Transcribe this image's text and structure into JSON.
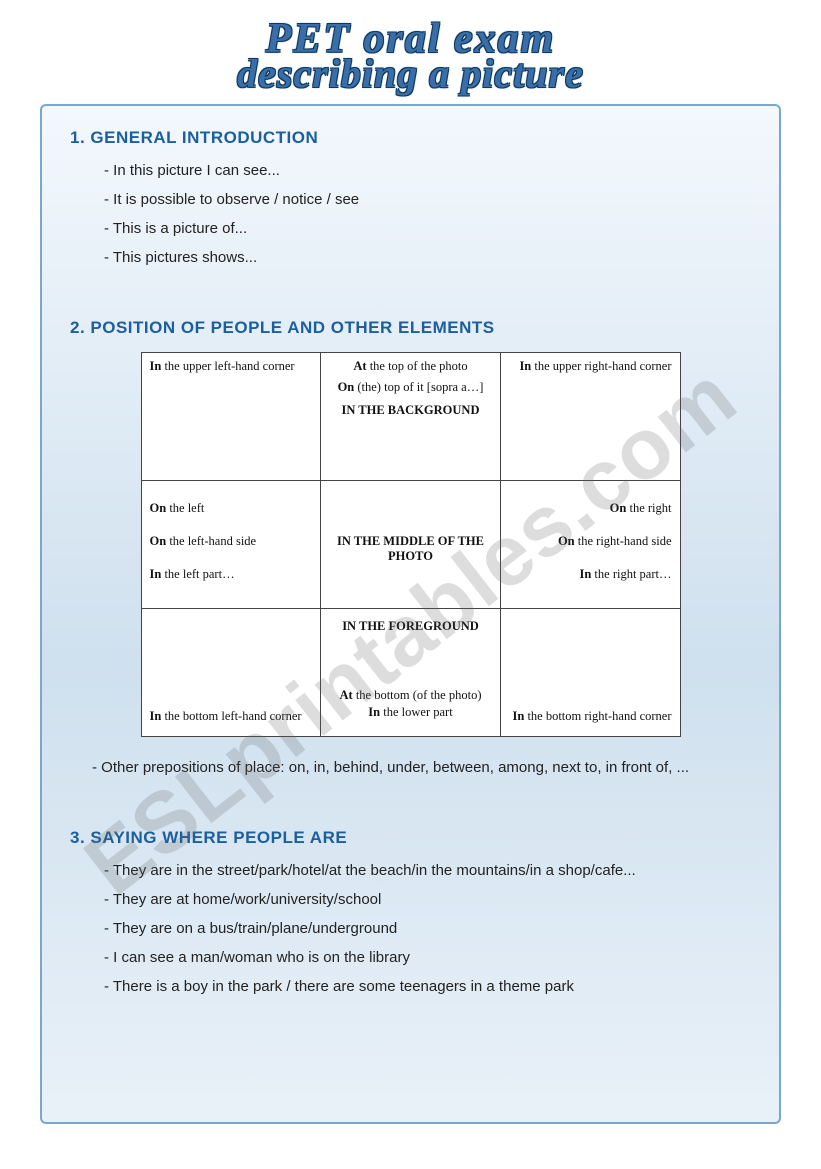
{
  "title": {
    "line1": "PET oral exam",
    "line2": "describing a picture"
  },
  "watermark": "ESLprintables.com",
  "section1": {
    "header": "1. GENERAL INTRODUCTION",
    "items": [
      "- In this picture I can see...",
      "- It is possible to observe / notice / see",
      "- This is a picture of...",
      "- This pictures shows..."
    ]
  },
  "section2": {
    "header": "2. POSITION OF PEOPLE AND OTHER ELEMENTS",
    "table": {
      "type": "table",
      "grid": "3x3",
      "cells": {
        "r1c1": [
          [
            "In",
            " the upper left-hand corner"
          ]
        ],
        "r1c2": [
          [
            "At",
            " the top of the photo"
          ],
          [
            "On",
            " (the) top of it [sopra a…]"
          ],
          [
            "",
            "IN THE BACKGROUND"
          ]
        ],
        "r1c3": [
          [
            "In",
            " the upper right-hand corner"
          ]
        ],
        "r2c1": [
          [
            "On",
            " the left"
          ],
          [
            "On",
            " the left-hand side"
          ],
          [
            "In",
            " the left part…"
          ]
        ],
        "r2c2": [
          [
            "",
            "IN THE MIDDLE OF THE PHOTO"
          ]
        ],
        "r2c3": [
          [
            "On",
            " the right"
          ],
          [
            "On",
            " the right-hand side"
          ],
          [
            "In",
            " the right part…"
          ]
        ],
        "r3c1": [
          [
            "In",
            " the bottom left-hand corner"
          ]
        ],
        "r3c2": [
          [
            "",
            "IN THE FOREGROUND"
          ],
          [
            "At",
            " the bottom (of the photo)"
          ],
          [
            "In",
            " the lower part"
          ]
        ],
        "r3c3": [
          [
            "In",
            " the bottom right-hand corner"
          ]
        ]
      },
      "border_color": "#444444",
      "background_color": "#ffffff",
      "font_family": "serif",
      "font_size_pt": 9
    },
    "footnote": "- Other prepositions of place: on, in, behind, under, between, among, next to, in front of, ..."
  },
  "section3": {
    "header": "3. SAYING WHERE PEOPLE ARE",
    "items": [
      "- They are in the street/park/hotel/at the beach/in the mountains/in a shop/cafe...",
      "- They are at home/work/university/school",
      "- They are on a bus/train/plane/underground",
      "- I can see a man/woman who is on the library",
      "- There is a boy in the park / there are some teenagers in a theme park"
    ]
  },
  "colors": {
    "heading": "#1b5fa0",
    "panel_border": "#7ba7cd",
    "panel_bg_top": "#f3f8fd",
    "panel_bg_mid": "#cfe0ee",
    "body_text": "#222222",
    "title_fill": "#3b6ea8",
    "title_outline": "#0b3a60"
  }
}
